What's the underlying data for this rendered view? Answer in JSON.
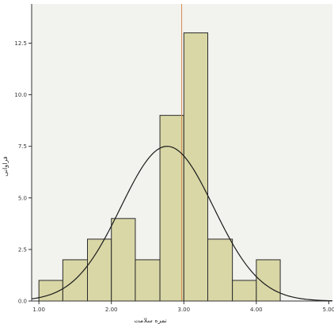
{
  "chart_data": {
    "type": "bar",
    "subtype": "histogram",
    "title": "",
    "xlabel": "نمره سلامت",
    "ylabel": "فراوانی",
    "bins": [
      {
        "x0": 1.0,
        "x1": 1.33,
        "count": 1
      },
      {
        "x0": 1.33,
        "x1": 1.67,
        "count": 2
      },
      {
        "x0": 1.67,
        "x1": 2.0,
        "count": 3
      },
      {
        "x0": 2.0,
        "x1": 2.33,
        "count": 4
      },
      {
        "x0": 2.33,
        "x1": 2.67,
        "count": 2
      },
      {
        "x0": 2.67,
        "x1": 3.0,
        "count": 9
      },
      {
        "x0": 3.0,
        "x1": 3.33,
        "count": 13
      },
      {
        "x0": 3.33,
        "x1": 3.67,
        "count": 3
      },
      {
        "x0": 3.67,
        "x1": 4.0,
        "count": 1
      },
      {
        "x0": 4.0,
        "x1": 4.33,
        "count": 2
      }
    ],
    "x_ticks": [
      {
        "value": 1.0,
        "label": "1.00"
      },
      {
        "value": 2.0,
        "label": "2.00"
      },
      {
        "value": 3.0,
        "label": "3.00"
      },
      {
        "value": 4.0,
        "label": "4.00"
      },
      {
        "value": 5.0,
        "label": "5.00"
      }
    ],
    "y_ticks": [
      {
        "value": 0,
        "label": "0.0"
      },
      {
        "value": 2.5,
        "label": "2.5"
      },
      {
        "value": 5.0,
        "label": "5.0"
      },
      {
        "value": 7.5,
        "label": "7.5"
      },
      {
        "value": 10.0,
        "label": "10.0"
      },
      {
        "value": 12.5,
        "label": "12.5"
      }
    ],
    "xlim": [
      0.9,
      5.05
    ],
    "ylim": [
      0,
      14.4
    ],
    "normal_curve": {
      "mean": 2.77,
      "sd": 0.64,
      "peak": 7.5
    },
    "reference_line_x": 2.97,
    "grid": false,
    "legend": "none",
    "colors": {
      "bar_fill": "#d9d7a6",
      "bar_stroke": "#2b2b2b",
      "curve": "#1a1a1a",
      "reference_line": "#d98a50",
      "plot_background": "#f2f2ef"
    }
  }
}
